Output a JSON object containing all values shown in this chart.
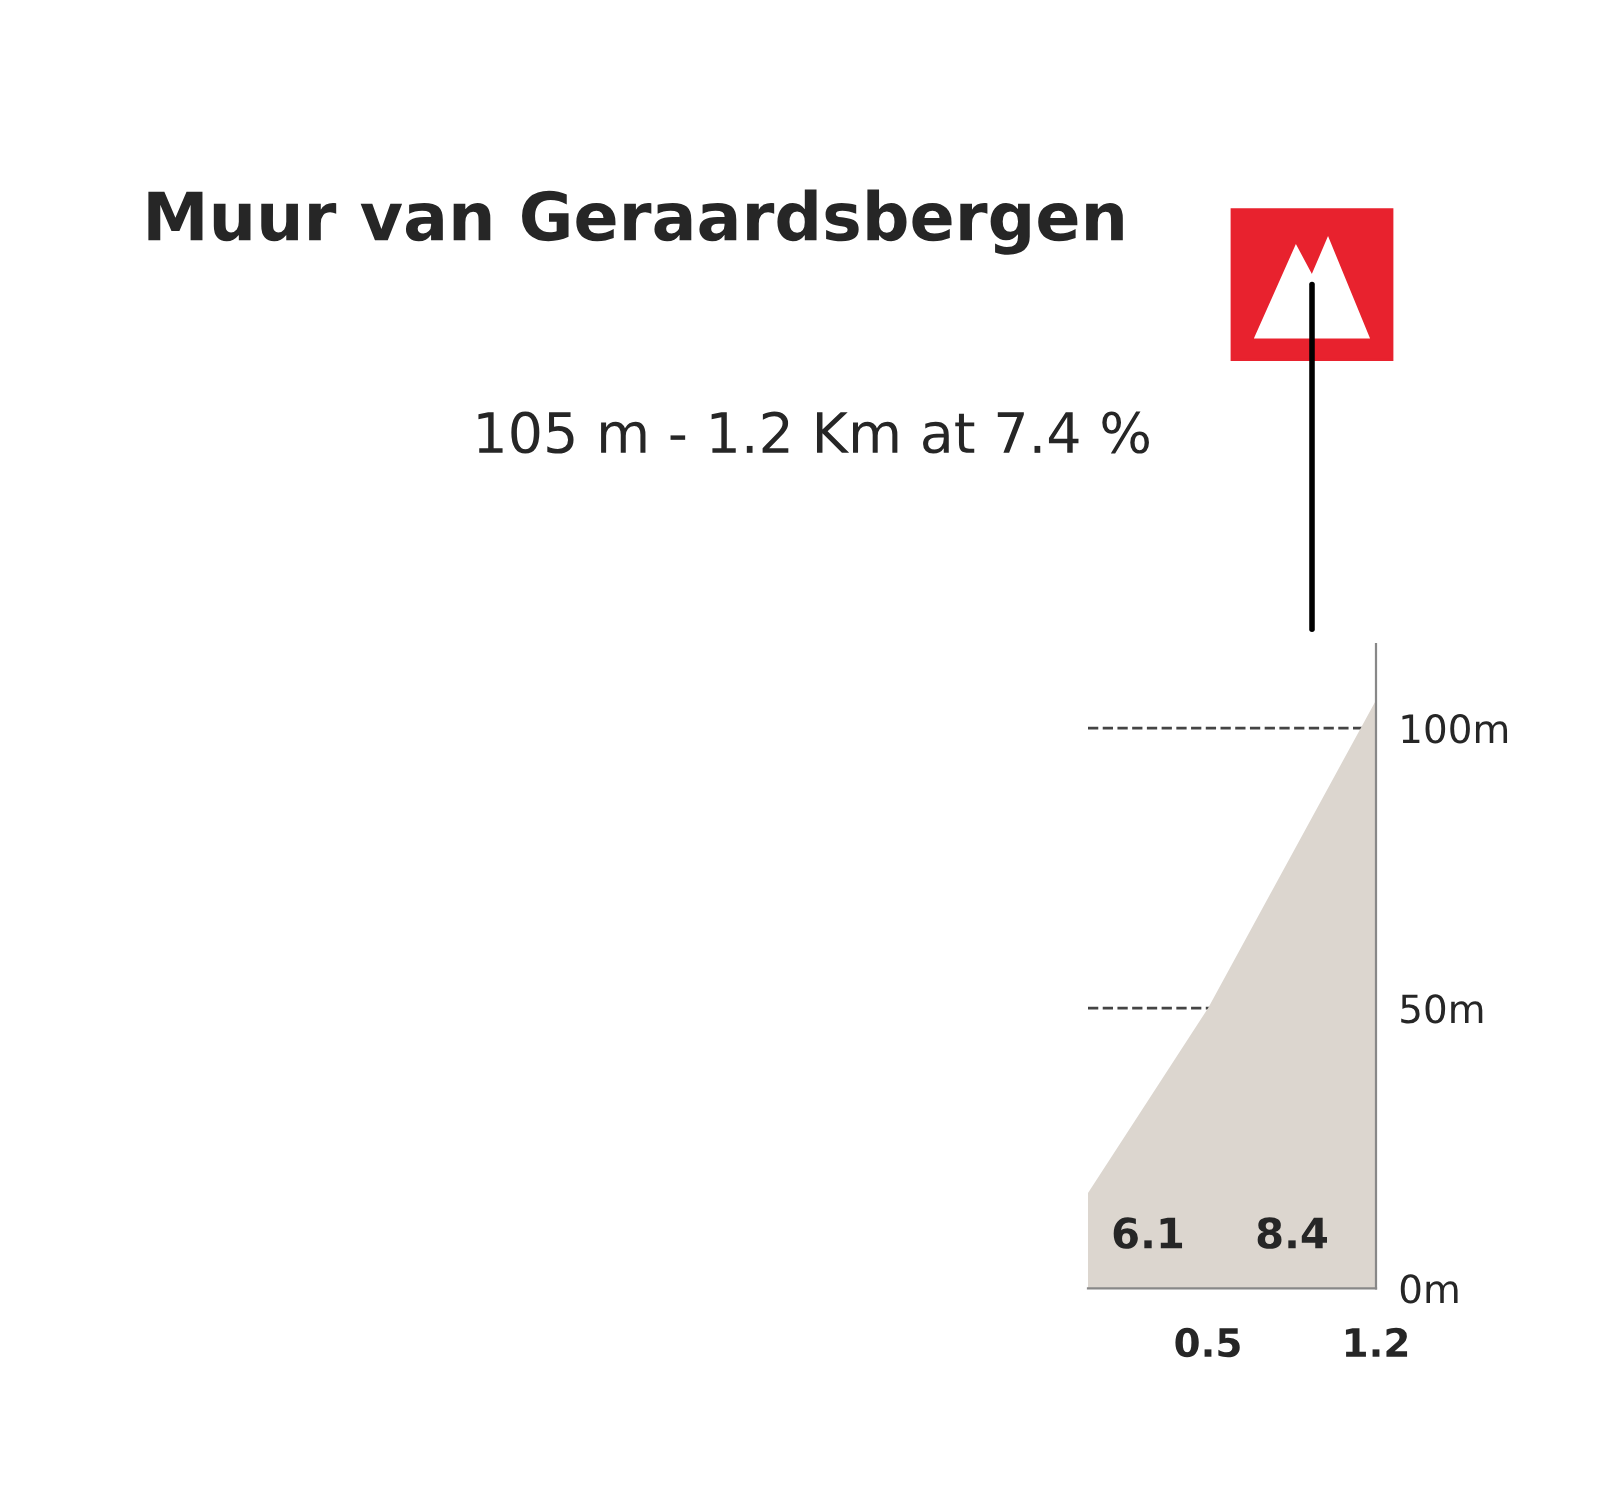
{
  "chart_data": {
    "type": "area",
    "title": "Muur van Geraardsbergen",
    "subtitle": "105 m - 1.2 Km at 7.4 %",
    "x": [
      0,
      0.5,
      1.2
    ],
    "series": [
      {
        "color": "#dcd6cf",
        "values": [
          17,
          50,
          105
        ]
      }
    ],
    "xlim": [
      0,
      1.2
    ],
    "xticks": [
      {
        "value": 0.5,
        "label": "0.5"
      },
      {
        "value": 1.2,
        "label": "1.2"
      }
    ],
    "ylim": [
      0,
      115
    ],
    "yticks": [
      {
        "value": 0,
        "label": "0m"
      },
      {
        "value": 50,
        "label": "50m"
      },
      {
        "value": 100,
        "label": "100m"
      }
    ],
    "annotations": [
      "6.1",
      "8.4"
    ],
    "grid": "y"
  }
}
